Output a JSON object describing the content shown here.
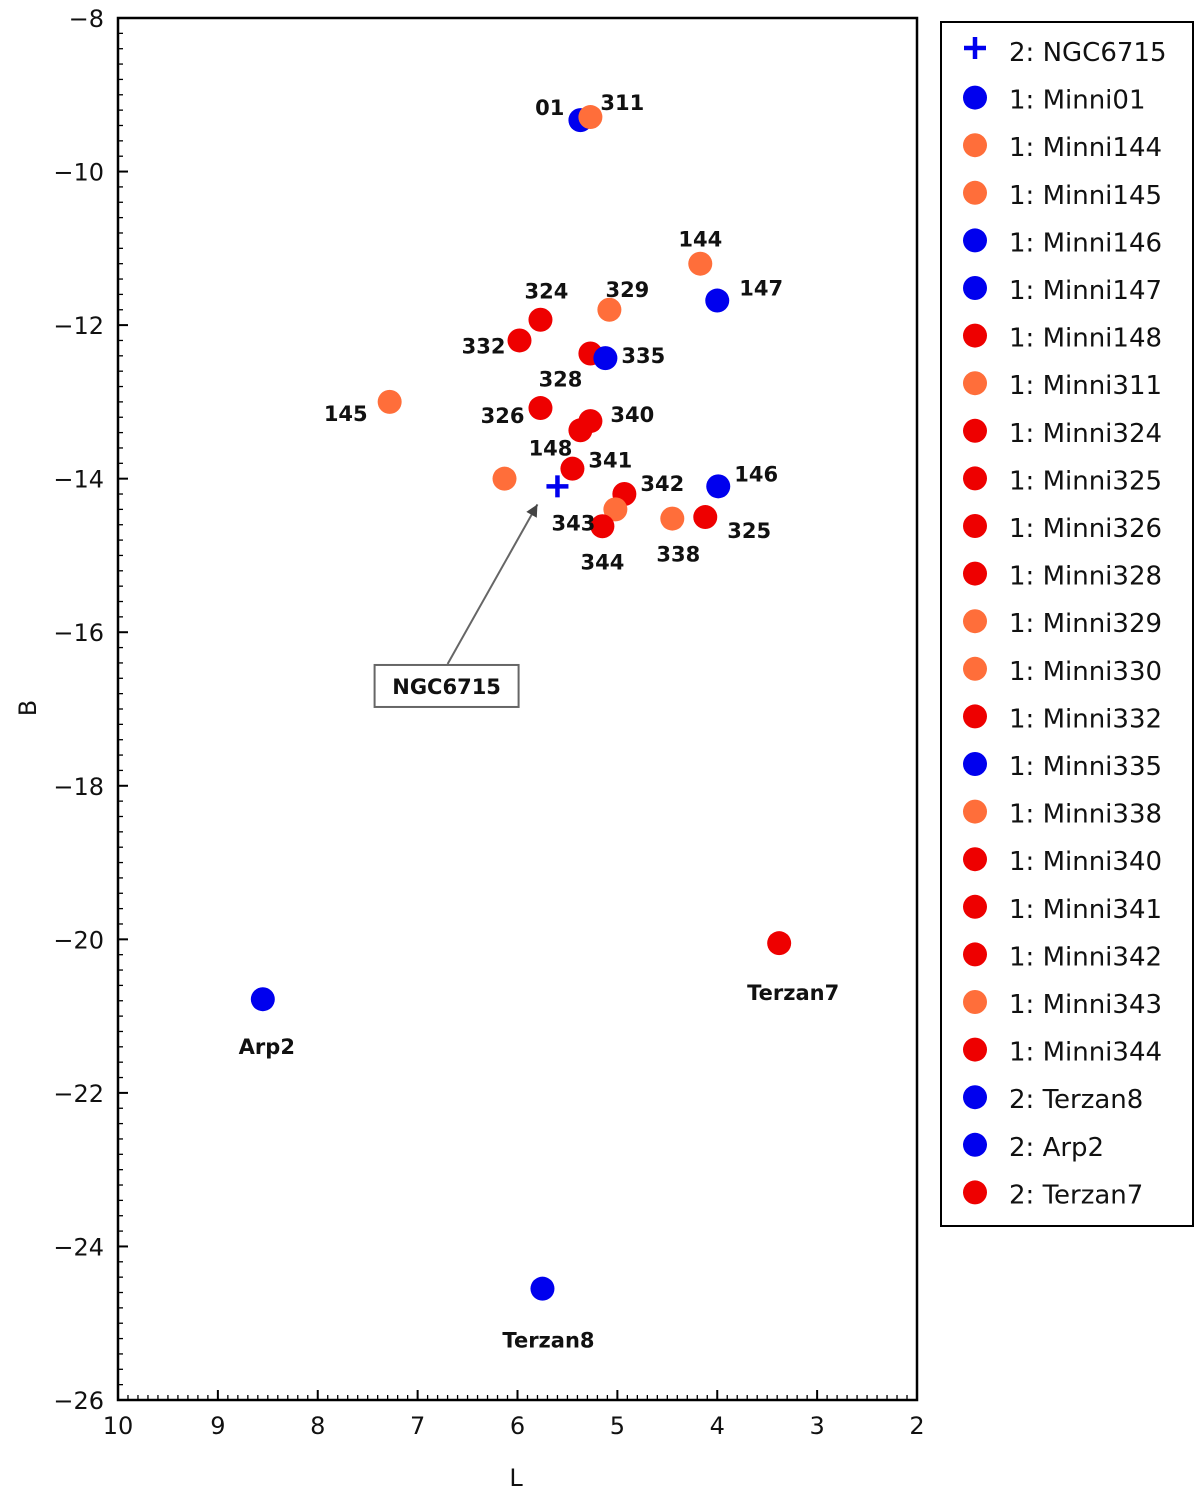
{
  "chart_data": {
    "type": "scatter",
    "title": "",
    "xlabel": "L",
    "ylabel": "B",
    "xlim": [
      10,
      2
    ],
    "ylim": [
      -26,
      -8
    ],
    "x_ticks": [
      10,
      9,
      8,
      7,
      6,
      5,
      4,
      3,
      2
    ],
    "y_ticks": [
      -8,
      -10,
      -12,
      -14,
      -16,
      -18,
      -20,
      -22,
      -24,
      -26
    ],
    "x_tick_labels": [
      "10",
      "9",
      "8",
      "7",
      "6",
      "5",
      "4",
      "3",
      "2"
    ],
    "y_tick_labels": [
      "−8",
      "−10",
      "−12",
      "−14",
      "−16",
      "−18",
      "−20",
      "−22",
      "−24",
      "−26"
    ],
    "grid": false,
    "legend_position": "outside-right",
    "colors": {
      "blue": "#0000ee",
      "orange": "#ff6e3a",
      "red": "#ee0000"
    },
    "series": [
      {
        "name": "2: NGC6715",
        "marker": "cross",
        "color": "#0000ee",
        "points": [
          {
            "x": 5.6,
            "y": -14.1
          }
        ]
      },
      {
        "name": "1: Minni01",
        "marker": "circle",
        "color": "#0000ee",
        "points": [
          {
            "x": 5.37,
            "y": -9.33
          }
        ]
      },
      {
        "name": "1: Minni144",
        "marker": "circle",
        "color": "#ff6e3a",
        "points": [
          {
            "x": 4.17,
            "y": -11.2
          }
        ]
      },
      {
        "name": "1: Minni145",
        "marker": "circle",
        "color": "#ff6e3a",
        "points": [
          {
            "x": 7.28,
            "y": -13.0
          }
        ]
      },
      {
        "name": "1: Minni146",
        "marker": "circle",
        "color": "#0000ee",
        "points": [
          {
            "x": 3.99,
            "y": -14.1
          }
        ]
      },
      {
        "name": "1: Minni147",
        "marker": "circle",
        "color": "#0000ee",
        "points": [
          {
            "x": 4.0,
            "y": -11.68
          }
        ]
      },
      {
        "name": "1: Minni148",
        "marker": "circle",
        "color": "#ee0000",
        "points": [
          {
            "x": 5.37,
            "y": -13.37
          }
        ]
      },
      {
        "name": "1: Minni311",
        "marker": "circle",
        "color": "#ff6e3a",
        "points": [
          {
            "x": 5.27,
            "y": -9.29
          }
        ]
      },
      {
        "name": "1: Minni324",
        "marker": "circle",
        "color": "#ee0000",
        "points": [
          {
            "x": 5.77,
            "y": -11.93
          }
        ]
      },
      {
        "name": "1: Minni325",
        "marker": "circle",
        "color": "#ee0000",
        "points": [
          {
            "x": 4.12,
            "y": -14.5
          }
        ]
      },
      {
        "name": "1: Minni326",
        "marker": "circle",
        "color": "#ee0000",
        "points": [
          {
            "x": 5.77,
            "y": -13.08
          }
        ]
      },
      {
        "name": "1: Minni328",
        "marker": "circle",
        "color": "#ee0000",
        "points": [
          {
            "x": 5.27,
            "y": -12.37
          }
        ]
      },
      {
        "name": "1: Minni329",
        "marker": "circle",
        "color": "#ff6e3a",
        "points": [
          {
            "x": 5.08,
            "y": -11.8
          }
        ]
      },
      {
        "name": "1: Minni330",
        "marker": "circle",
        "color": "#ff6e3a",
        "points": [
          {
            "x": 6.13,
            "y": -14.0
          }
        ]
      },
      {
        "name": "1: Minni332",
        "marker": "circle",
        "color": "#ee0000",
        "points": [
          {
            "x": 5.98,
            "y": -12.2
          }
        ]
      },
      {
        "name": "1: Minni335",
        "marker": "circle",
        "color": "#0000ee",
        "points": [
          {
            "x": 5.12,
            "y": -12.43
          }
        ]
      },
      {
        "name": "1: Minni338",
        "marker": "circle",
        "color": "#ff6e3a",
        "points": [
          {
            "x": 4.45,
            "y": -14.52
          }
        ]
      },
      {
        "name": "1: Minni340",
        "marker": "circle",
        "color": "#ee0000",
        "points": [
          {
            "x": 5.27,
            "y": -13.25
          }
        ]
      },
      {
        "name": "1: Minni341",
        "marker": "circle",
        "color": "#ee0000",
        "points": [
          {
            "x": 5.45,
            "y": -13.87
          }
        ]
      },
      {
        "name": "1: Minni342",
        "marker": "circle",
        "color": "#ee0000",
        "points": [
          {
            "x": 4.93,
            "y": -14.2
          }
        ]
      },
      {
        "name": "1: Minni343",
        "marker": "circle",
        "color": "#ff6e3a",
        "points": [
          {
            "x": 5.02,
            "y": -14.4
          }
        ]
      },
      {
        "name": "1: Minni344",
        "marker": "circle",
        "color": "#ee0000",
        "points": [
          {
            "x": 5.15,
            "y": -14.62
          }
        ]
      },
      {
        "name": "2: Terzan8",
        "marker": "circle",
        "color": "#0000ee",
        "points": [
          {
            "x": 5.75,
            "y": -24.55
          }
        ]
      },
      {
        "name": "2: Arp2",
        "marker": "circle",
        "color": "#0000ee",
        "points": [
          {
            "x": 8.55,
            "y": -20.78
          }
        ]
      },
      {
        "name": "2: Terzan7",
        "marker": "circle",
        "color": "#ee0000",
        "points": [
          {
            "x": 3.38,
            "y": -20.05
          }
        ]
      }
    ],
    "point_labels": [
      {
        "text": "01",
        "x": 5.37,
        "y": -9.33,
        "anchor": "end",
        "dx": -16,
        "dy": -12
      },
      {
        "text": "311",
        "x": 5.27,
        "y": -9.29,
        "anchor": "start",
        "dx": 10,
        "dy": -14
      },
      {
        "text": "144",
        "x": 4.17,
        "y": -11.2,
        "anchor": "middle",
        "dx": 0,
        "dy": -24
      },
      {
        "text": "147",
        "x": 4.0,
        "y": -11.68,
        "anchor": "start",
        "dx": 22,
        "dy": -12
      },
      {
        "text": "324",
        "x": 5.77,
        "y": -11.93,
        "anchor": "middle",
        "dx": 6,
        "dy": -28
      },
      {
        "text": "329",
        "x": 5.08,
        "y": -11.8,
        "anchor": "middle",
        "dx": 18,
        "dy": -20
      },
      {
        "text": "332",
        "x": 5.98,
        "y": -12.2,
        "anchor": "end",
        "dx": -14,
        "dy": 6
      },
      {
        "text": "335",
        "x": 5.12,
        "y": -12.43,
        "anchor": "start",
        "dx": 16,
        "dy": -2
      },
      {
        "text": "328",
        "x": 5.27,
        "y": -12.37,
        "anchor": "end",
        "dx": -8,
        "dy": 26
      },
      {
        "text": "145",
        "x": 7.28,
        "y": -13.0,
        "anchor": "end",
        "dx": -22,
        "dy": 12
      },
      {
        "text": "326",
        "x": 5.77,
        "y": -13.08,
        "anchor": "end",
        "dx": -16,
        "dy": 8
      },
      {
        "text": "340",
        "x": 5.27,
        "y": -13.25,
        "anchor": "start",
        "dx": 20,
        "dy": -6
      },
      {
        "text": "148",
        "x": 5.37,
        "y": -13.37,
        "anchor": "end",
        "dx": -8,
        "dy": 18
      },
      {
        "text": "341",
        "x": 5.45,
        "y": -13.87,
        "anchor": "start",
        "dx": 16,
        "dy": -8
      },
      {
        "text": "342",
        "x": 4.93,
        "y": -14.2,
        "anchor": "start",
        "dx": 16,
        "dy": -10
      },
      {
        "text": "146",
        "x": 3.99,
        "y": -14.1,
        "anchor": "start",
        "dx": 16,
        "dy": -12
      },
      {
        "text": "343",
        "x": 5.02,
        "y": -14.4,
        "anchor": "end",
        "dx": -20,
        "dy": 14
      },
      {
        "text": "325",
        "x": 4.12,
        "y": -14.5,
        "anchor": "start",
        "dx": 22,
        "dy": 14
      },
      {
        "text": "344",
        "x": 5.15,
        "y": -14.62,
        "anchor": "middle",
        "dx": 0,
        "dy": 36
      },
      {
        "text": "338",
        "x": 4.45,
        "y": -14.52,
        "anchor": "middle",
        "dx": 6,
        "dy": 36
      },
      {
        "text": "Arp2",
        "x": 8.55,
        "y": -20.78,
        "anchor": "middle",
        "dx": 4,
        "dy": 48
      },
      {
        "text": "Terzan7",
        "x": 3.38,
        "y": -20.05,
        "anchor": "middle",
        "dx": 14,
        "dy": 50
      },
      {
        "text": "Terzan8",
        "x": 5.75,
        "y": -24.55,
        "anchor": "middle",
        "dx": 6,
        "dy": 52
      }
    ],
    "annotations": [
      {
        "text": "NGC6715",
        "arrow_to": {
          "x": 5.6,
          "y": -14.1
        },
        "box_center": {
          "x": 6.71,
          "y": -16.7
        }
      }
    ]
  }
}
